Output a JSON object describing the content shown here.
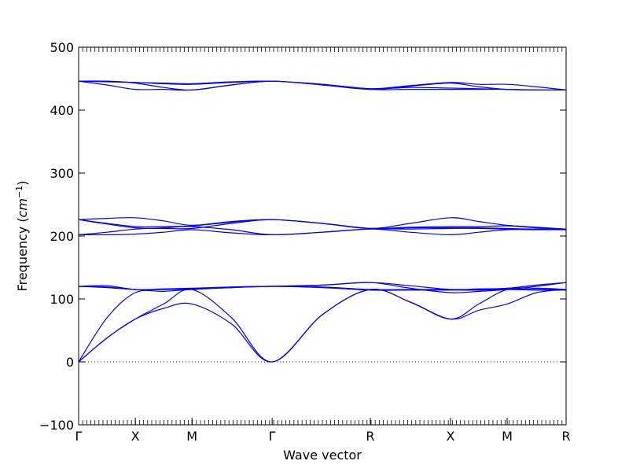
{
  "chart_data": {
    "type": "line",
    "xlabel": "Wave vector",
    "ylabel": {
      "prefix": "Frequency (",
      "unit_base": "cm",
      "unit_exp": "−1",
      "suffix": ")"
    },
    "ylim": [
      -100,
      500
    ],
    "yticks": [
      -100,
      0,
      100,
      200,
      300,
      400,
      500
    ],
    "ytick_labels": [
      "−100",
      "0",
      "100",
      "200",
      "300",
      "400",
      "500"
    ],
    "xlim": [
      0,
      8.6
    ],
    "xticks": [
      {
        "label": "Γ",
        "x": 0.0
      },
      {
        "label": "X",
        "x": 1.0
      },
      {
        "label": "M",
        "x": 2.0
      },
      {
        "label": "Γ",
        "x": 3.414
      },
      {
        "label": "R",
        "x": 5.146
      },
      {
        "label": "X",
        "x": 6.56
      },
      {
        "label": "M",
        "x": 7.56
      },
      {
        "label": "R",
        "x": 8.6
      }
    ],
    "zero_line": true,
    "color": "#0000ff",
    "series": [
      {
        "x": [
          0,
          0.5,
          1.0,
          1.5,
          2.0,
          2.7,
          3.414,
          4.3,
          5.146,
          5.85,
          6.56,
          7.06,
          7.56,
          8.08,
          8.6
        ],
        "y": [
          0,
          38,
          68,
          85,
          92,
          60,
          0,
          75,
          115,
          95,
          68,
          82,
          92,
          110,
          115
        ]
      },
      {
        "x": [
          0,
          0.5,
          1.0,
          1.5,
          2.0,
          2.7,
          3.414,
          4.3,
          5.146,
          5.85,
          6.56,
          7.06,
          7.56,
          8.08,
          8.6
        ],
        "y": [
          0,
          38,
          68,
          92,
          115,
          70,
          0,
          75,
          115,
          95,
          68,
          92,
          115,
          117,
          115
        ]
      },
      {
        "x": [
          0,
          0.5,
          1.0,
          1.5,
          2.0,
          2.7,
          3.414,
          4.3,
          5.146,
          5.85,
          6.56,
          7.06,
          7.56,
          8.08,
          8.6
        ],
        "y": [
          0,
          70,
          110,
          112,
          115,
          118,
          120,
          122,
          126,
          117,
          110,
          112,
          115,
          120,
          126
        ]
      },
      {
        "x": [
          0,
          0.5,
          1.0,
          1.5,
          2.0,
          2.7,
          3.414,
          4.3,
          5.146,
          5.85,
          6.56,
          7.06,
          7.56,
          8.08,
          8.6
        ],
        "y": [
          120,
          118,
          115,
          115,
          116,
          119,
          120,
          119,
          115,
          115,
          115,
          115,
          116,
          115,
          115
        ]
      },
      {
        "x": [
          0,
          0.5,
          1.0,
          1.5,
          2.0,
          2.7,
          3.414,
          4.3,
          5.146,
          5.85,
          6.56,
          7.06,
          7.56,
          8.08,
          8.6
        ],
        "y": [
          120,
          121,
          115,
          116,
          117,
          119,
          120,
          122,
          126,
          121,
          115,
          116,
          117,
          122,
          126
        ]
      },
      {
        "x": [
          0,
          0.5,
          1.0,
          1.5,
          2.0,
          2.7,
          3.414,
          4.3,
          5.146,
          5.85,
          6.56,
          7.06,
          7.56,
          8.08,
          8.6
        ],
        "y": [
          120,
          119,
          115,
          115,
          116,
          118,
          120,
          118,
          114,
          114,
          114,
          114,
          115,
          114,
          114
        ]
      },
      {
        "x": [
          0,
          0.5,
          1.0,
          1.5,
          2.0,
          2.7,
          3.414,
          4.3,
          5.146,
          5.85,
          6.56,
          7.06,
          7.56,
          8.08,
          8.6
        ],
        "y": [
          202,
          202,
          203,
          206,
          210,
          205,
          202,
          206,
          211,
          206,
          202,
          206,
          210,
          210,
          210
        ]
      },
      {
        "x": [
          0,
          0.5,
          1.0,
          1.5,
          2.0,
          2.7,
          3.414,
          4.3,
          5.146,
          5.85,
          6.56,
          7.06,
          7.56,
          8.08,
          8.6
        ],
        "y": [
          202,
          206,
          211,
          213,
          215,
          210,
          202,
          206,
          211,
          211,
          212,
          212,
          211,
          211,
          210
        ]
      },
      {
        "x": [
          0,
          0.5,
          1.0,
          1.5,
          2.0,
          2.7,
          3.414,
          4.3,
          5.146,
          5.85,
          6.56,
          7.06,
          7.56,
          8.08,
          8.6
        ],
        "y": [
          226,
          220,
          215,
          215,
          216,
          222,
          226,
          220,
          212,
          214,
          215,
          215,
          216,
          213,
          211
        ]
      },
      {
        "x": [
          0,
          0.5,
          1.0,
          1.5,
          2.0,
          2.7,
          3.414,
          4.3,
          5.146,
          5.85,
          6.56,
          7.06,
          7.56,
          8.08,
          8.6
        ],
        "y": [
          226,
          228,
          229,
          224,
          217,
          223,
          226,
          220,
          212,
          220,
          229,
          223,
          217,
          214,
          211
        ]
      },
      {
        "x": [
          0,
          0.5,
          1.0,
          1.5,
          2.0,
          2.7,
          3.414,
          4.3,
          5.146,
          5.85,
          6.56,
          7.06,
          7.56,
          8.08,
          8.6
        ],
        "y": [
          226,
          219,
          213,
          212,
          212,
          220,
          226,
          220,
          212,
          213,
          213,
          213,
          212,
          211,
          211
        ]
      },
      {
        "x": [
          0,
          0.5,
          1.0,
          1.5,
          2.0,
          2.7,
          3.414,
          4.3,
          5.146,
          5.85,
          6.56,
          7.06,
          7.56,
          8.08,
          8.6
        ],
        "y": [
          446,
          440,
          433,
          433,
          432,
          440,
          446,
          440,
          433,
          433,
          433,
          433,
          433,
          432,
          432
        ]
      },
      {
        "x": [
          0,
          0.5,
          1.0,
          1.5,
          2.0,
          2.7,
          3.414,
          4.3,
          5.146,
          5.85,
          6.56,
          7.06,
          7.56,
          8.08,
          8.6
        ],
        "y": [
          446,
          446,
          443,
          436,
          432,
          440,
          446,
          440,
          433,
          438,
          443,
          437,
          433,
          432,
          432
        ]
      },
      {
        "x": [
          0,
          0.5,
          1.0,
          1.5,
          2.0,
          2.7,
          3.414,
          4.3,
          5.146,
          5.85,
          6.56,
          7.06,
          7.56,
          8.08,
          8.6
        ],
        "y": [
          446,
          445,
          444,
          442,
          441,
          444,
          446,
          441,
          434,
          439,
          444,
          441,
          441,
          437,
          432
        ]
      },
      {
        "x": [
          0,
          0.5,
          1.0,
          1.5,
          2.0,
          2.7,
          3.414,
          4.3,
          5.146,
          5.85,
          6.56,
          7.06,
          7.56,
          8.08,
          8.6
        ],
        "y": [
          446,
          446,
          444,
          443,
          442,
          445,
          446,
          441,
          434,
          436,
          435,
          434,
          433,
          432,
          432
        ]
      }
    ]
  }
}
